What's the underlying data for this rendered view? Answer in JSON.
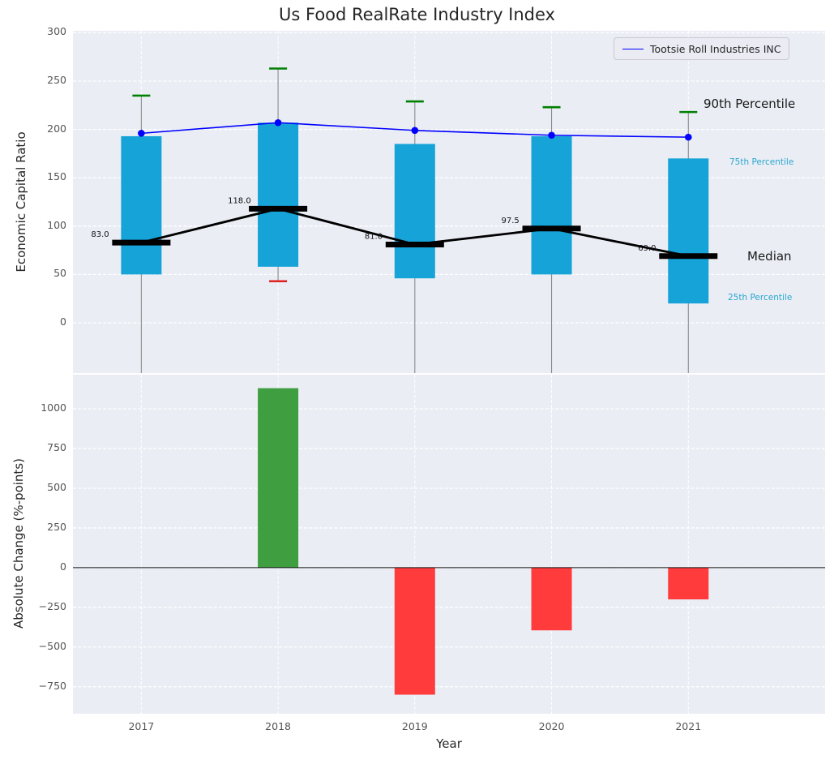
{
  "title": "Us Food RealRate Industry Index",
  "legend": {
    "label": "Tootsie Roll Industries INC"
  },
  "axis": {
    "top_ylabel": "Economic Capital Ratio",
    "bottom_ylabel": "Absolute Change (%-points)",
    "xlabel": "Year"
  },
  "annotations": {
    "p90": "90th Percentile",
    "p75": "75th Percentile",
    "median": "Median",
    "p25": "25th Percentile"
  },
  "colors": {
    "box": "#15a3d8",
    "box_green_cap": "#008000",
    "box_red_cap": "#e02020",
    "median": "#000000",
    "company_line": "#0000ff",
    "bar_positive": "#3f9e3f",
    "bar_negative": "#ff3b3b",
    "panel_bg": "#eaedf4",
    "annotation_small": "#2aa7cf",
    "tick": "#555555"
  },
  "chart_data": [
    {
      "type": "box",
      "title": "Us Food RealRate Industry Index",
      "ylabel": "Economic Capital Ratio",
      "categories": [
        "2017",
        "2018",
        "2019",
        "2020",
        "2021"
      ],
      "yticks": [
        0,
        50,
        100,
        150,
        200,
        250,
        300
      ],
      "ylim": [
        -52,
        302
      ],
      "grid": true,
      "legend_position": "upper right",
      "boxes": [
        {
          "year": 2017,
          "q25": 50,
          "q75": 193,
          "p90": 235,
          "median": 83.0,
          "median_label": "83.0",
          "low_cap": null
        },
        {
          "year": 2018,
          "q25": 58,
          "q75": 207,
          "p90": 263,
          "median": 118.0,
          "median_label": "118.0",
          "low_cap": 43
        },
        {
          "year": 2019,
          "q25": 46,
          "q75": 185,
          "p90": 229,
          "median": 81.0,
          "median_label": "81.0",
          "low_cap": null
        },
        {
          "year": 2020,
          "q25": 50,
          "q75": 193,
          "p90": 223,
          "median": 97.5,
          "median_label": "97.5",
          "low_cap": null
        },
        {
          "year": 2021,
          "q25": 20,
          "q75": 170,
          "p90": 218,
          "median": 69.0,
          "median_label": "69.0",
          "low_cap": null
        }
      ],
      "series": [
        {
          "name": "Tootsie Roll Industries INC",
          "values": [
            196,
            207,
            199,
            194,
            192
          ]
        },
        {
          "name": "Median",
          "values": [
            83.0,
            118.0,
            81.0,
            97.5,
            69.0
          ]
        }
      ]
    },
    {
      "type": "bar",
      "ylabel": "Absolute Change (%-points)",
      "xlabel": "Year",
      "categories": [
        "2017",
        "2018",
        "2019",
        "2020",
        "2021"
      ],
      "values": [
        null,
        1130,
        -800,
        -395,
        -200
      ],
      "yticks": [
        -750,
        -500,
        -250,
        0,
        250,
        500,
        750,
        1000
      ],
      "ylim": [
        -920,
        1215
      ],
      "grid": true
    }
  ]
}
